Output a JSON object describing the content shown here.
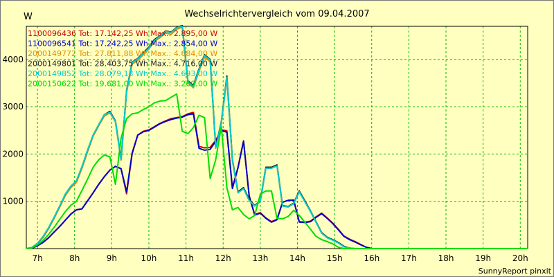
{
  "chart_data": {
    "type": "line",
    "title": "Wechselrichtervergleich vom 09.04.2007",
    "ylabel": "W",
    "xlabel": "",
    "xlim": [
      6.7,
      20.2
    ],
    "ylim": [
      0,
      4700
    ],
    "grid": true,
    "x_tick_labels": [
      "7h",
      "8h",
      "9h",
      "10h",
      "11h",
      "12h",
      "13h",
      "14h",
      "15h",
      "16h",
      "17h",
      "18h",
      "19h",
      "20h"
    ],
    "x_tick_values": [
      7,
      8,
      9,
      10,
      11,
      12,
      13,
      14,
      15,
      16,
      17,
      18,
      19,
      20
    ],
    "y_tick_labels": [
      "1000",
      "2000",
      "3000",
      "4000"
    ],
    "y_tick_values": [
      1000,
      2000,
      3000,
      4000
    ],
    "x": [
      6.7,
      6.85,
      7.0,
      7.15,
      7.3,
      7.45,
      7.6,
      7.75,
      7.9,
      8.05,
      8.2,
      8.35,
      8.5,
      8.65,
      8.8,
      8.95,
      9.1,
      9.25,
      9.4,
      9.55,
      9.7,
      9.85,
      10.0,
      10.15,
      10.3,
      10.45,
      10.6,
      10.75,
      10.9,
      11.05,
      11.2,
      11.35,
      11.5,
      11.65,
      11.8,
      11.95,
      12.1,
      12.25,
      12.4,
      12.55,
      12.7,
      12.85,
      13.0,
      13.15,
      13.3,
      13.45,
      13.6,
      13.75,
      13.9,
      14.05,
      14.2,
      14.35,
      14.5,
      14.65,
      14.8,
      14.95,
      15.1,
      15.25,
      15.4,
      15.55,
      15.7,
      15.85,
      16.0,
      16.15,
      16.3,
      16.45,
      16.6,
      16.75,
      16.9,
      17.05,
      17.2,
      17.35,
      17.5,
      17.65,
      17.8,
      17.95,
      18.1,
      18.25,
      18.4,
      18.55,
      18.7,
      18.85,
      19.0,
      19.15,
      19.3,
      19.45,
      19.6,
      19.75,
      19.9,
      20.05,
      20.2
    ],
    "legend_position": "top-left",
    "series": [
      {
        "name": "1100096436",
        "legend": "1100096436 Tot: 17.142,25 Wh Max.: 2.895,00 W",
        "color": "#cc0000",
        "values": [
          0,
          10,
          60,
          130,
          230,
          350,
          470,
          600,
          730,
          820,
          840,
          1010,
          1180,
          1360,
          1520,
          1660,
          1740,
          1690,
          1160,
          2000,
          2400,
          2480,
          2510,
          2580,
          2650,
          2700,
          2750,
          2770,
          2790,
          2850,
          2880,
          2160,
          2130,
          2140,
          2290,
          2510,
          2490,
          1290,
          1720,
          2280,
          1120,
          720,
          760,
          650,
          570,
          620,
          980,
          1020,
          1030,
          570,
          560,
          580,
          670,
          750,
          650,
          540,
          410,
          270,
          200,
          150,
          90,
          30,
          0,
          0,
          0,
          0,
          0,
          0,
          0,
          0,
          0,
          0,
          0,
          0,
          0,
          0,
          0,
          0,
          0,
          0,
          0,
          0,
          0,
          0,
          0,
          0,
          0,
          0,
          0,
          0,
          0
        ]
      },
      {
        "name": "1100096541",
        "legend": "1100096541 Tot: 17.242,25 Wh Max.: 2.854,00 W",
        "color": "#0000cc",
        "values": [
          0,
          10,
          60,
          130,
          230,
          350,
          470,
          600,
          730,
          820,
          840,
          1010,
          1180,
          1360,
          1520,
          1660,
          1740,
          1690,
          1200,
          2020,
          2400,
          2470,
          2500,
          2570,
          2640,
          2690,
          2730,
          2760,
          2780,
          2830,
          2850,
          2120,
          2080,
          2100,
          2270,
          2500,
          2460,
          1270,
          1710,
          2270,
          1110,
          710,
          750,
          640,
          560,
          610,
          980,
          1020,
          1020,
          560,
          550,
          570,
          660,
          740,
          640,
          530,
          400,
          260,
          190,
          140,
          80,
          30,
          0,
          0,
          0,
          0,
          0,
          0,
          0,
          0,
          0,
          0,
          0,
          0,
          0,
          0,
          0,
          0,
          0,
          0,
          0,
          0,
          0,
          0,
          0,
          0,
          0,
          0,
          0,
          0,
          0
        ]
      },
      {
        "name": "2000149772",
        "legend": "2000149772 Tot: 27.811,88 Wh Max.: 4.684,00 W",
        "color": "#e09000",
        "values": [
          0,
          20,
          100,
          230,
          420,
          640,
          880,
          1120,
          1290,
          1400,
          1700,
          2050,
          2380,
          2600,
          2800,
          2870,
          2680,
          1870,
          3300,
          3900,
          3980,
          4100,
          4220,
          4380,
          4460,
          4560,
          4530,
          4640,
          4680,
          3500,
          3400,
          3750,
          4050,
          3950,
          2120,
          2650,
          3600,
          1860,
          1180,
          1270,
          1020,
          900,
          1000,
          1700,
          1700,
          1750,
          900,
          880,
          950,
          1200,
          1000,
          780,
          560,
          330,
          230,
          180,
          120,
          40,
          10,
          0,
          0,
          0,
          0,
          0,
          0,
          0,
          0,
          0,
          0,
          0,
          0,
          0,
          0,
          0,
          0,
          0,
          0,
          0,
          0,
          0,
          0,
          0,
          0,
          0,
          0,
          0,
          0,
          0,
          0,
          0,
          0
        ]
      },
      {
        "name": "2000149801",
        "legend": "2000149801 Tot: 28.403,75 Wh Max.: 4.716,00 W",
        "color": "#222222",
        "values": [
          0,
          20,
          110,
          250,
          440,
          660,
          900,
          1150,
          1320,
          1430,
          1730,
          2080,
          2400,
          2620,
          2830,
          2900,
          2700,
          1900,
          3340,
          3940,
          4020,
          4140,
          4260,
          4420,
          4500,
          4600,
          4580,
          4680,
          4716,
          3550,
          3450,
          3800,
          4100,
          4000,
          2150,
          2680,
          3650,
          1880,
          1200,
          1290,
          1040,
          910,
          1010,
          1720,
          1720,
          1770,
          910,
          890,
          960,
          1220,
          1010,
          800,
          570,
          340,
          240,
          190,
          130,
          50,
          10,
          0,
          0,
          0,
          0,
          0,
          0,
          0,
          0,
          0,
          0,
          0,
          0,
          0,
          0,
          0,
          0,
          0,
          0,
          0,
          0,
          0,
          0,
          0,
          0,
          0,
          0,
          0,
          0,
          0,
          0,
          0,
          0
        ]
      },
      {
        "name": "2000149852",
        "legend": "2000149852 Tot: 28.079,13 Wh Max.: 4.693,00 W",
        "color": "#00cccc",
        "values": [
          0,
          20,
          110,
          250,
          440,
          660,
          900,
          1150,
          1320,
          1430,
          1730,
          2080,
          2400,
          2620,
          2830,
          2880,
          2690,
          1880,
          3320,
          3930,
          4010,
          4120,
          4240,
          4400,
          4490,
          4590,
          4570,
          4670,
          4693,
          3530,
          3420,
          3780,
          4080,
          3990,
          2130,
          2660,
          3620,
          1860,
          1180,
          1270,
          1020,
          900,
          1000,
          1700,
          1700,
          1750,
          900,
          880,
          950,
          1200,
          990,
          790,
          560,
          330,
          230,
          180,
          120,
          40,
          10,
          0,
          0,
          0,
          0,
          0,
          0,
          0,
          0,
          0,
          0,
          0,
          0,
          0,
          0,
          0,
          0,
          0,
          0,
          0,
          0,
          0,
          0,
          0,
          0,
          0,
          0,
          0,
          0,
          0,
          0,
          0,
          0
        ]
      },
      {
        "name": "2000150622",
        "legend": "2000150622 Tot: 19.681,00 Wh Max.: 3.269,00 W",
        "color": "#00dd00",
        "values": [
          0,
          15,
          80,
          170,
          300,
          450,
          620,
          780,
          920,
          1000,
          1230,
          1470,
          1720,
          1880,
          1980,
          1940,
          1360,
          2330,
          2750,
          2850,
          2870,
          2940,
          3000,
          3080,
          3120,
          3130,
          3200,
          3269,
          2480,
          2430,
          2560,
          2820,
          2770,
          1480,
          1880,
          2580,
          1290,
          820,
          870,
          720,
          630,
          700,
          1150,
          1220,
          1220,
          640,
          630,
          680,
          810,
          700,
          560,
          410,
          260,
          190,
          150,
          100,
          30,
          0,
          0,
          0,
          0,
          0,
          0,
          0,
          0,
          0,
          0,
          0,
          0,
          0,
          0,
          0,
          0,
          0,
          0,
          0,
          0,
          0,
          0,
          0,
          0,
          0,
          0,
          0,
          0,
          0,
          0,
          0,
          0,
          0,
          0
        ]
      }
    ]
  },
  "footer": "SunnyReport pinxit"
}
